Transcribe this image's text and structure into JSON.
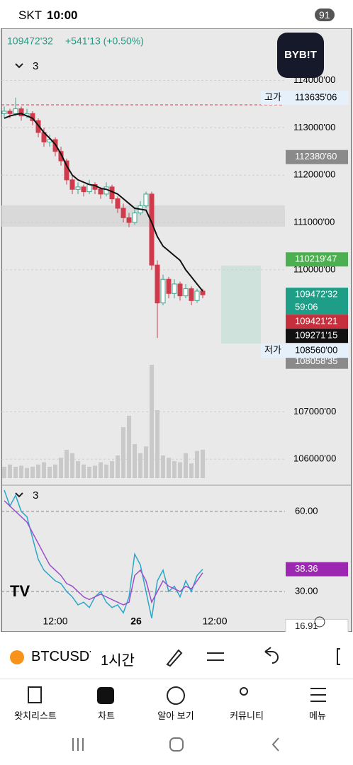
{
  "status_bar": {
    "carrier": "SKT",
    "time": "10:00",
    "battery": "91"
  },
  "header": {
    "price": "109472'32",
    "change": "+541'13 (+0.50%)",
    "indicator": "3",
    "logo": "BYB!T"
  },
  "chart": {
    "ylim": [
      105600,
      115100
    ],
    "yticks": [
      {
        "value": 114000,
        "label": "114000'00"
      },
      {
        "value": 113000,
        "label": "113000'00"
      },
      {
        "value": 112000,
        "label": "112000'00"
      },
      {
        "value": 111000,
        "label": "111000'00"
      },
      {
        "value": 110000,
        "label": "110000'00"
      },
      {
        "value": 107000,
        "label": "107000'00"
      },
      {
        "value": 106000,
        "label": "106000'00"
      }
    ],
    "up_color": "#3aa58f",
    "down_color": "#d03a4a",
    "volume_color": "#c9c9c9",
    "ma_color": "#111111",
    "candles": [
      [
        113300,
        113450,
        113200,
        113350
      ],
      [
        113350,
        113400,
        113200,
        113300
      ],
      [
        113300,
        113635,
        113250,
        113400
      ],
      [
        113400,
        113450,
        113150,
        113250
      ],
      [
        113250,
        113400,
        113200,
        113300
      ],
      [
        113300,
        113350,
        113050,
        113150
      ],
      [
        113150,
        113200,
        112800,
        112900
      ],
      [
        112900,
        113000,
        112600,
        112700
      ],
      [
        112700,
        112850,
        112600,
        112750
      ],
      [
        112750,
        112800,
        112400,
        112500
      ],
      [
        112500,
        112600,
        112200,
        112300
      ],
      [
        112300,
        112350,
        111800,
        111900
      ],
      [
        111900,
        112000,
        111600,
        111700
      ],
      [
        111700,
        111850,
        111600,
        111750
      ],
      [
        111750,
        111800,
        111550,
        111650
      ],
      [
        111650,
        111900,
        111600,
        111800
      ],
      [
        111800,
        111850,
        111600,
        111700
      ],
      [
        111700,
        111750,
        111500,
        111600
      ],
      [
        111600,
        111850,
        111550,
        111750
      ],
      [
        111750,
        111800,
        111400,
        111500
      ],
      [
        111500,
        111550,
        111200,
        111300
      ],
      [
        111300,
        111400,
        111000,
        111100
      ],
      [
        111100,
        111200,
        110900,
        111000
      ],
      [
        111000,
        111300,
        110950,
        111200
      ],
      [
        111200,
        111450,
        111150,
        111350
      ],
      [
        111350,
        111650,
        111300,
        111600
      ],
      [
        111600,
        111650,
        110000,
        110100
      ],
      [
        110100,
        110200,
        108560,
        109300
      ],
      [
        109300,
        109900,
        109250,
        109800
      ],
      [
        109800,
        109850,
        109400,
        109500
      ],
      [
        109500,
        109800,
        109400,
        109700
      ],
      [
        109700,
        109750,
        109350,
        109450
      ],
      [
        109450,
        109700,
        109400,
        109600
      ],
      [
        109600,
        109650,
        109250,
        109350
      ],
      [
        109350,
        109600,
        109300,
        109550
      ],
      [
        109550,
        109600,
        109400,
        109472
      ]
    ],
    "volumes": [
      10,
      12,
      10,
      11,
      9,
      10,
      12,
      14,
      10,
      12,
      18,
      25,
      22,
      15,
      12,
      10,
      11,
      14,
      12,
      15,
      20,
      45,
      55,
      30,
      22,
      28,
      100,
      60,
      20,
      18,
      15,
      14,
      22,
      13,
      24,
      25
    ],
    "ma": [
      113200,
      113250,
      113280,
      113300,
      113250,
      113200,
      113050,
      112900,
      112780,
      112650,
      112450,
      112200,
      112000,
      111900,
      111850,
      111800,
      111780,
      111720,
      111700,
      111650,
      111600,
      111500,
      111400,
      111300,
      111280,
      111260,
      111000,
      110700,
      110500,
      110400,
      110300,
      110200,
      110000,
      109850,
      109700,
      109550
    ],
    "badges": [
      {
        "value": 112380.6,
        "label": "112380'60",
        "color": "#8a8a8a"
      },
      {
        "value": 110219.47,
        "label": "110219'47",
        "color": "#4caf50"
      },
      {
        "value": 109472.32,
        "label": "109472'32",
        "sub": "59:06",
        "color": "#1e9e86"
      },
      {
        "value": 109421.21,
        "label": "109421'21",
        "color": "#c62f3c"
      },
      {
        "value": 109271.15,
        "label": "109271'15",
        "color": "#111111"
      },
      {
        "value": 108058.35,
        "label": "108058'35",
        "color": "#8a8a8a"
      }
    ],
    "high": {
      "prefix": "고가",
      "value": 113635.06,
      "label": "113635'06"
    },
    "low": {
      "prefix": "저가",
      "value": 108560,
      "label": "108560'00"
    },
    "x_labels": [
      "12:00",
      "26",
      "12:00"
    ]
  },
  "rsi": {
    "indicator": "3",
    "ylim": [
      14.9,
      68.5
    ],
    "yticks": [
      {
        "value": 60,
        "label": "60.00"
      },
      {
        "value": 30,
        "label": "30.00"
      }
    ],
    "values": [
      68,
      62,
      66,
      60,
      58,
      50,
      42,
      38,
      36,
      34,
      33,
      30,
      28,
      25,
      26,
      24,
      28,
      30,
      26,
      24,
      25,
      22,
      28,
      44,
      40,
      30,
      20,
      34,
      38,
      30,
      32,
      28,
      34,
      30,
      36,
      38.36
    ],
    "signal": [
      64,
      62,
      60,
      58,
      56,
      52,
      48,
      44,
      40,
      38,
      36,
      33,
      32,
      30,
      28,
      27,
      28,
      29,
      28,
      27,
      26,
      25,
      26,
      36,
      38,
      34,
      26,
      30,
      34,
      32,
      31,
      30,
      32,
      31,
      34,
      37
    ],
    "badges": [
      {
        "value": 38.36,
        "label": "38.36",
        "color": "#9c27b0"
      },
      {
        "value": 16.91,
        "label": "16.91",
        "color": "#ffffff"
      }
    ]
  },
  "toolbar": {
    "symbol": "BTCUSDT",
    "interval": "1시간"
  },
  "nav": [
    "왓치리스트",
    "차트",
    "알아 보기",
    "커뮤니티",
    "메뉴"
  ]
}
